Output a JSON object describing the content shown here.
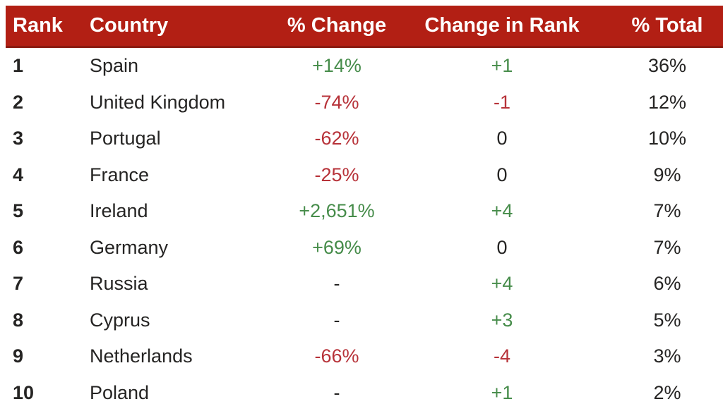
{
  "chart_data": {
    "type": "table",
    "columns": [
      {
        "key": "rank",
        "label": "Rank",
        "align": "left"
      },
      {
        "key": "country",
        "label": "Country",
        "align": "left"
      },
      {
        "key": "pct_change",
        "label": "% Change",
        "align": "center"
      },
      {
        "key": "rank_change",
        "label": "Change in Rank",
        "align": "center"
      },
      {
        "key": "pct_total",
        "label": "% Total",
        "align": "center"
      }
    ],
    "rows": [
      {
        "rank": "1",
        "country": "Spain",
        "pct_change": "+14%",
        "pct_change_trend": "positive",
        "rank_change": "+1",
        "rank_change_trend": "positive",
        "pct_total": "36%"
      },
      {
        "rank": "2",
        "country": "United Kingdom",
        "pct_change": "-74%",
        "pct_change_trend": "negative",
        "rank_change": "-1",
        "rank_change_trend": "negative",
        "pct_total": "12%"
      },
      {
        "rank": "3",
        "country": "Portugal",
        "pct_change": "-62%",
        "pct_change_trend": "negative",
        "rank_change": "0",
        "rank_change_trend": "neutral",
        "pct_total": "10%"
      },
      {
        "rank": "4",
        "country": "France",
        "pct_change": "-25%",
        "pct_change_trend": "negative",
        "rank_change": "0",
        "rank_change_trend": "neutral",
        "pct_total": "9%"
      },
      {
        "rank": "5",
        "country": "Ireland",
        "pct_change": "+2,651%",
        "pct_change_trend": "positive",
        "rank_change": "+4",
        "rank_change_trend": "positive",
        "pct_total": "7%"
      },
      {
        "rank": "6",
        "country": "Germany",
        "pct_change": "+69%",
        "pct_change_trend": "positive",
        "rank_change": "0",
        "rank_change_trend": "neutral",
        "pct_total": "7%"
      },
      {
        "rank": "7",
        "country": "Russia",
        "pct_change": "-",
        "pct_change_trend": "neutral",
        "rank_change": "+4",
        "rank_change_trend": "positive",
        "pct_total": "6%"
      },
      {
        "rank": "8",
        "country": "Cyprus",
        "pct_change": "-",
        "pct_change_trend": "neutral",
        "rank_change": "+3",
        "rank_change_trend": "positive",
        "pct_total": "5%"
      },
      {
        "rank": "9",
        "country": "Netherlands",
        "pct_change": "-66%",
        "pct_change_trend": "negative",
        "rank_change": "-4",
        "rank_change_trend": "negative",
        "pct_total": "3%"
      },
      {
        "rank": "10",
        "country": "Poland",
        "pct_change": "-",
        "pct_change_trend": "neutral",
        "rank_change": "+1",
        "rank_change_trend": "positive",
        "pct_total": "2%"
      }
    ]
  },
  "colors": {
    "header_bg": "#B21F14",
    "header_border": "#8B1A10",
    "header_text": "#FFFFFF",
    "positive": "#468C4A",
    "negative": "#B73239",
    "text": "#252423",
    "background": "#FFFFFF"
  }
}
